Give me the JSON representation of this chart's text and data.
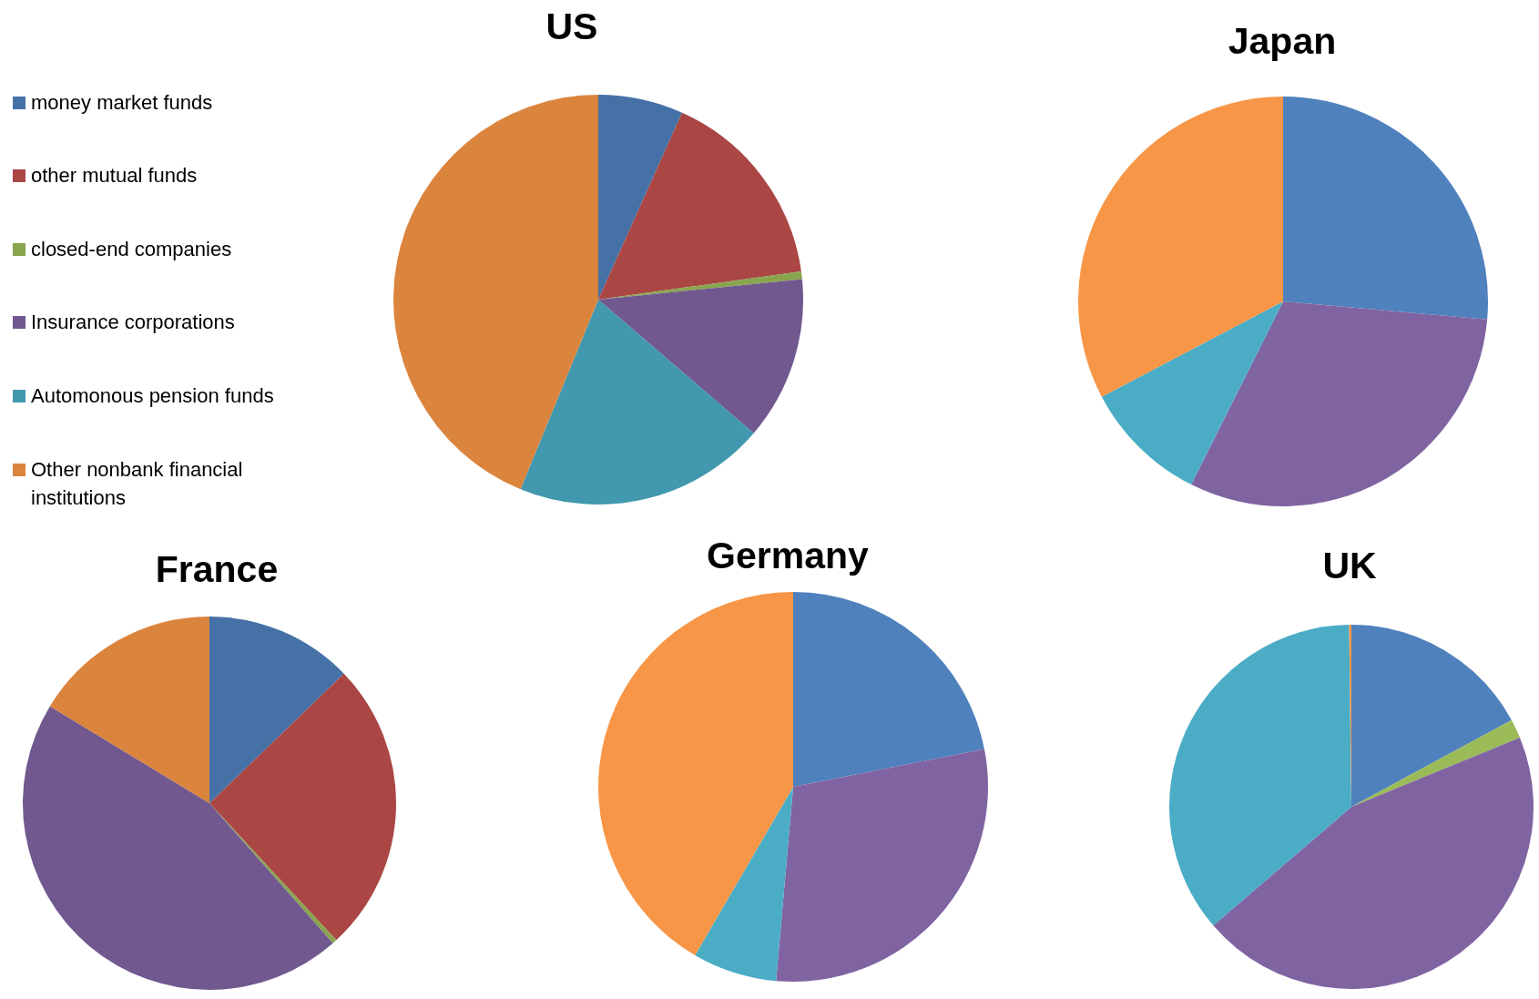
{
  "chart_data": [
    {
      "type": "pie",
      "title": "US",
      "categories": [
        "money market funds",
        "other mutual funds",
        "closed-end companies",
        "Insurance corporations",
        "Automonous pension funds",
        "Other nonbank financial institutions"
      ],
      "values": [
        6.7,
        16.1,
        0.6,
        12.9,
        19.9,
        43.8
      ],
      "colors": [
        "#4571a7",
        "#aa4644",
        "#89a54e",
        "#71588f",
        "#4198af",
        "#db843d"
      ],
      "legend": "left"
    },
    {
      "type": "pie",
      "title": "Japan",
      "categories": [
        null,
        null,
        null,
        null
      ],
      "values": [
        26.4,
        31.0,
        9.9,
        32.7
      ],
      "colors": [
        "#4f81bd",
        "#8064a2",
        "#4bacc6",
        "#f79646"
      ]
    },
    {
      "type": "pie",
      "title": "France",
      "categories": [
        null,
        null,
        null,
        null,
        null
      ],
      "values": [
        12.8,
        25.3,
        0.4,
        45.2,
        16.3
      ],
      "colors": [
        "#4571a7",
        "#aa4644",
        "#89a54e",
        "#71588f",
        "#db843d"
      ]
    },
    {
      "type": "pie",
      "title": "Germany",
      "categories": [
        null,
        null,
        null,
        null
      ],
      "values": [
        21.9,
        29.5,
        7.0,
        41.6
      ],
      "colors": [
        "#4f81bd",
        "#8064a2",
        "#4bacc6",
        "#f79646"
      ]
    },
    {
      "type": "pie",
      "title": "UK",
      "categories": [
        null,
        null,
        null,
        null,
        null
      ],
      "values": [
        17.1,
        1.7,
        44.9,
        36.1,
        0.2
      ],
      "colors": [
        "#4f81bd",
        "#9bbb59",
        "#8064a2",
        "#4bacc6",
        "#f79646"
      ]
    }
  ]
}
